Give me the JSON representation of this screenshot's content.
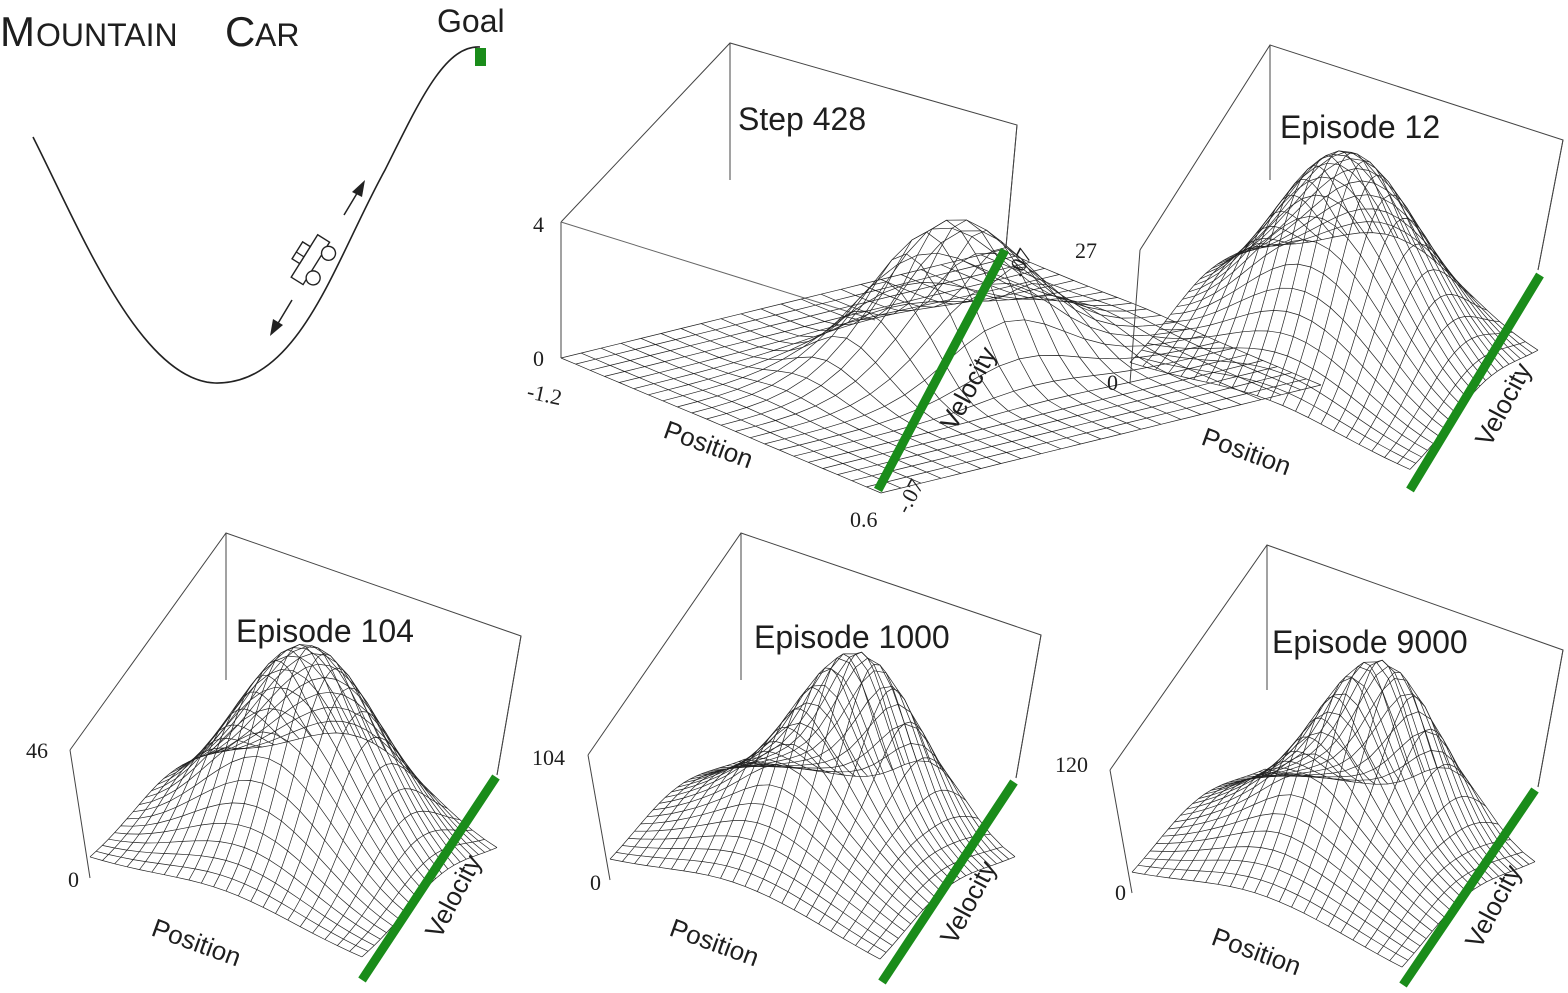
{
  "header": {
    "title_m": "M",
    "title_ountain": "OUNTAIN",
    "title_c": "C",
    "title_ar": "AR"
  },
  "diagram": {
    "goal_label": "Goal",
    "goal_color": "#1a8c1a",
    "icons": [
      "car-icon",
      "goal-flag-icon",
      "arrow-up-icon",
      "arrow-down-icon"
    ]
  },
  "panels": [
    {
      "id": "step-428",
      "title": "Step 428",
      "zmax": "4",
      "zmin": "0",
      "pos_min": "-1.2",
      "pos_max": "0.6",
      "vel_min": "-.07",
      "vel_max": ".07",
      "xlabel": "Position",
      "ylabel": "Velocity",
      "shape": "ring"
    },
    {
      "id": "episode-12",
      "title": "Episode 12",
      "zmax": "27",
      "zmin": "0",
      "xlabel": "Position",
      "ylabel": "Velocity",
      "shape": "dome"
    },
    {
      "id": "episode-104",
      "title": "Episode 104",
      "zmax": "46",
      "zmin": "0",
      "xlabel": "Position",
      "ylabel": "Velocity",
      "shape": "dome"
    },
    {
      "id": "episode-1000",
      "title": "Episode 1000",
      "zmax": "104",
      "zmin": "0",
      "xlabel": "Position",
      "ylabel": "Velocity",
      "shape": "ridge"
    },
    {
      "id": "episode-9000",
      "title": "Episode 9000",
      "zmax": "120",
      "zmin": "0",
      "xlabel": "Position",
      "ylabel": "Velocity",
      "shape": "ridge"
    }
  ]
}
